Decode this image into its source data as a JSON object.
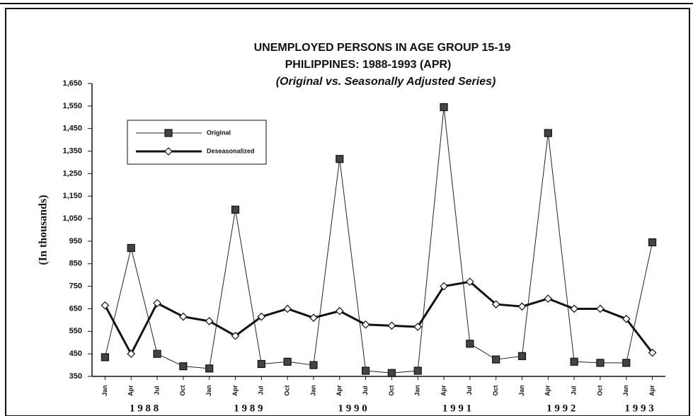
{
  "chart_data": {
    "type": "line",
    "title": "UNEMPLOYED PERSONS IN AGE GROUP 15-19",
    "subtitle": "PHILIPPINES: 1988-1993 (APR)",
    "note": "(Original vs. Seasonally Adjusted Series)",
    "y_label": "(In thousands)",
    "categories": [
      "Jan",
      "Apr",
      "Jul",
      "Oct",
      "Jan",
      "Apr",
      "Jul",
      "Oct",
      "Jan",
      "Apr",
      "Jul",
      "Oct",
      "Jan",
      "Apr",
      "Jul",
      "Oct",
      "Jan",
      "Apr",
      "Jul",
      "Oct",
      "Jan",
      "Apr"
    ],
    "year_labels": [
      "1 9 8 8",
      "1 9 8 9",
      "1 9 9 0",
      "1 9 9 1",
      "1 9 9 2",
      "1 9 9 3"
    ],
    "series": [
      {
        "name": "Original",
        "color": "#222222",
        "values": [
          435,
          920,
          450,
          395,
          385,
          1090,
          405,
          415,
          400,
          1315,
          375,
          365,
          375,
          1545,
          495,
          425,
          440,
          1430,
          415,
          410,
          410,
          945
        ]
      },
      {
        "name": "Deseasonalized",
        "color": "#111111",
        "values": [
          665,
          450,
          675,
          615,
          595,
          530,
          615,
          650,
          610,
          640,
          580,
          575,
          570,
          750,
          770,
          670,
          660,
          695,
          650,
          650,
          605,
          455
        ]
      }
    ],
    "ylim": [
      350,
      1650
    ],
    "yticks": [
      350,
      450,
      550,
      650,
      750,
      850,
      950,
      {
        "value": 1050,
        "label": "1,050"
      },
      {
        "value": 1150,
        "label": "1,150"
      },
      {
        "value": 1250,
        "label": "1,250"
      },
      {
        "value": 1350,
        "label": "1,350"
      },
      {
        "value": 1450,
        "label": "1,450"
      },
      {
        "value": 1550,
        "label": "1,550"
      },
      {
        "value": 1650,
        "label": "1,650"
      }
    ],
    "grid": false,
    "legend": "upper left"
  }
}
